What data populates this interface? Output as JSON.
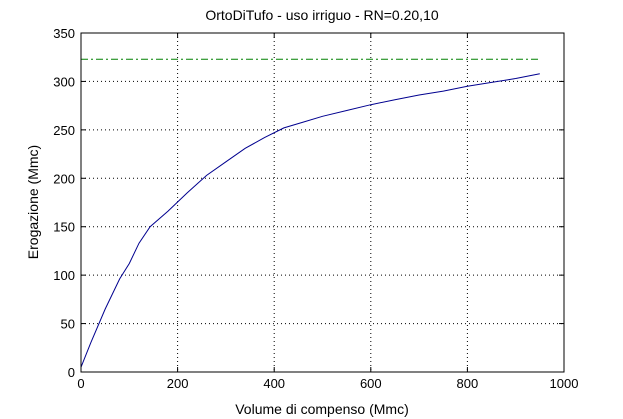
{
  "chart_data": {
    "type": "line",
    "title": "OrtoDiTufo  -  uso irriguo  -   RN=0.20,10",
    "xlabel": "Volume di compenso (Mmc)",
    "ylabel": "Erogazione (Mmc)",
    "xlim": [
      0,
      1000
    ],
    "ylim": [
      0,
      350
    ],
    "xticks": [
      0,
      200,
      400,
      600,
      800,
      1000
    ],
    "yticks": [
      0,
      50,
      100,
      150,
      200,
      250,
      300,
      350
    ],
    "grid": true,
    "series": [
      {
        "color": "#00008f",
        "style": "solid",
        "x": [
          0,
          20,
          50,
          80,
          100,
          120,
          143,
          180,
          220,
          260,
          300,
          340,
          380,
          420,
          460,
          500,
          550,
          600,
          650,
          700,
          750,
          800,
          850,
          900,
          950
        ],
        "y": [
          5,
          30,
          65,
          96,
          112,
          133,
          150,
          166,
          185,
          203,
          217,
          231,
          242,
          252,
          258,
          264,
          270,
          276,
          281,
          286,
          290,
          295,
          299,
          303,
          308
        ]
      },
      {
        "color": "#008000",
        "style": "dashdot",
        "x": [
          0,
          950
        ],
        "y": [
          323,
          323
        ]
      }
    ]
  }
}
